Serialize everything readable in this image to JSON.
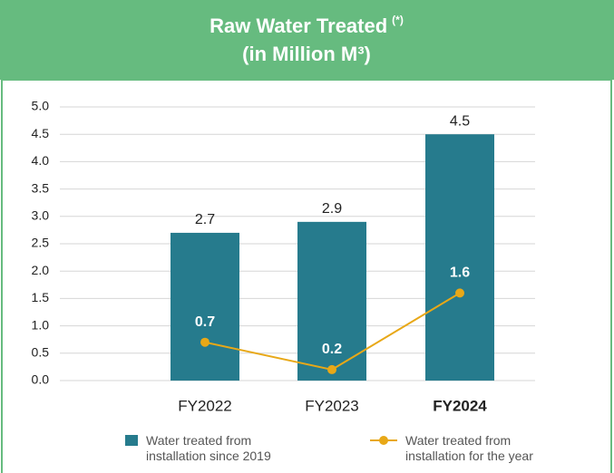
{
  "chart_data": {
    "type": "bar",
    "title": "Raw Water Treated",
    "title_note": "(*)",
    "subtitle": "(in Million M³)",
    "categories": [
      "FY2022",
      "FY2023",
      "FY2024"
    ],
    "highlight_index": 2,
    "series": [
      {
        "name": "Water treated from installation since 2019",
        "type": "bar",
        "color": "#267b8d",
        "values": [
          2.7,
          2.9,
          4.5
        ]
      },
      {
        "name": "Water treated from installation for the year",
        "type": "line",
        "color": "#e8a817",
        "values": [
          0.7,
          0.2,
          1.6
        ]
      }
    ],
    "ylim": [
      0,
      5
    ],
    "yticks": [
      {
        "value": 0,
        "label": "0.0"
      },
      0.5,
      {
        "value": 1,
        "label": "1.0"
      },
      1.5,
      {
        "value": 2,
        "label": "2.0"
      },
      2.5,
      {
        "value": 3,
        "label": "3.0"
      },
      3.5,
      {
        "value": 4,
        "label": "4.0"
      },
      4.5,
      {
        "value": 5,
        "label": "5.0"
      }
    ],
    "grid": true,
    "header_color": "#66bb7f"
  }
}
